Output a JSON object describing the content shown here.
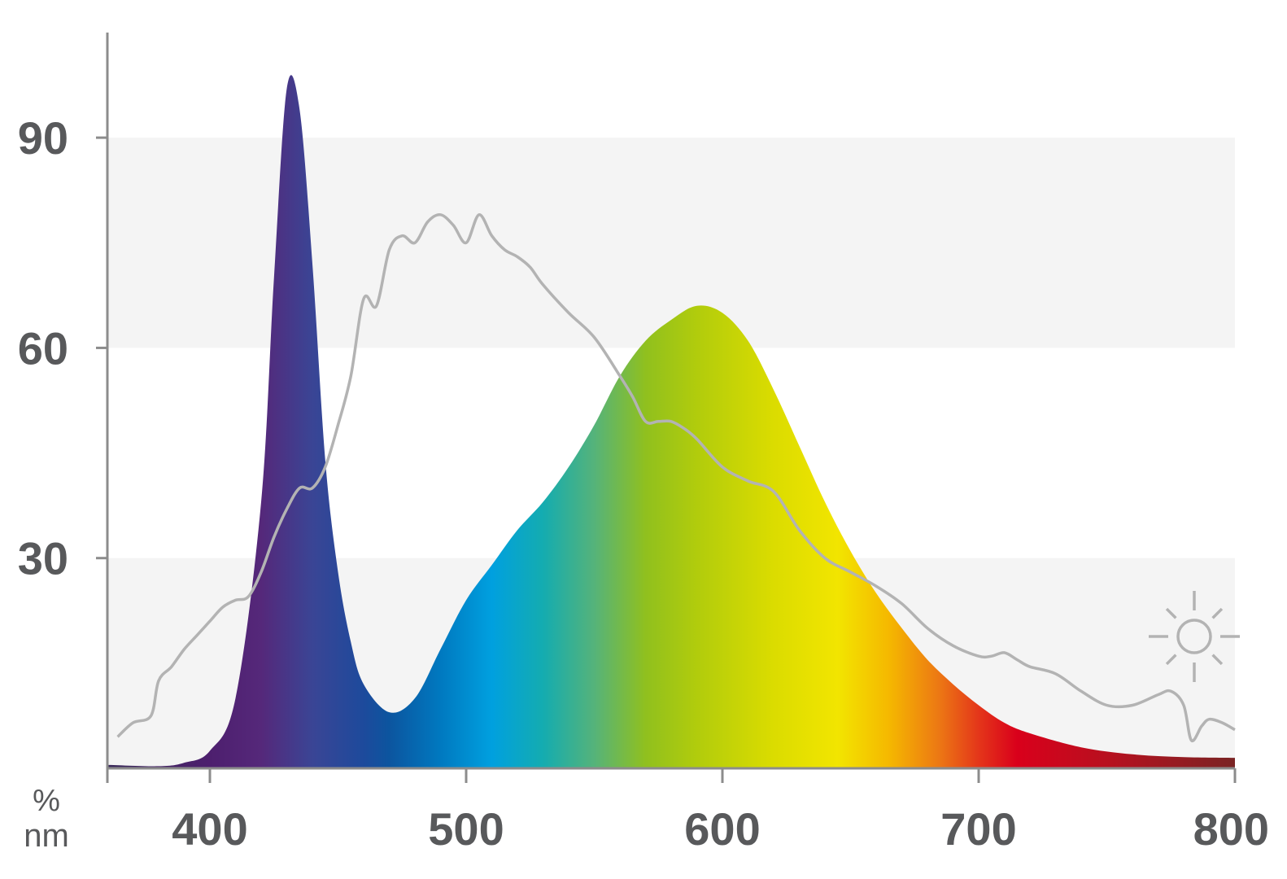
{
  "chart_data": {
    "type": "area",
    "title": "",
    "xlabel": "nm",
    "ylabel": "%",
    "xlim": [
      360,
      800
    ],
    "ylim": [
      0,
      105
    ],
    "x_ticks": [
      400,
      500,
      600,
      700,
      800
    ],
    "y_ticks": [
      30,
      60,
      90
    ],
    "x_tick_labels": [
      "400",
      "500",
      "600",
      "700",
      "800"
    ],
    "y_tick_labels": [
      "30",
      "60",
      "90"
    ],
    "grid": "alternating horizontal bands",
    "colors": {
      "axis": "#8c8c8c",
      "band": "#f4f4f4",
      "sunlight_line": "#b3b3b3",
      "text": "#58595b"
    },
    "icon": "sun-icon",
    "series": [
      {
        "style": "spectral-gradient-area",
        "x": [
          360,
          380,
          390,
          400,
          410,
          420,
          425,
          430,
          435,
          440,
          445,
          450,
          455,
          460,
          470,
          480,
          490,
          500,
          510,
          520,
          530,
          540,
          550,
          560,
          570,
          580,
          590,
          600,
          610,
          620,
          630,
          640,
          650,
          660,
          670,
          680,
          690,
          700,
          710,
          720,
          740,
          760,
          780,
          800
        ],
        "y": [
          0.5,
          0.3,
          0.8,
          2.5,
          10,
          38,
          70,
          97,
          94,
          72,
          44,
          28,
          18,
          12,
          8,
          10,
          17,
          24,
          29,
          34,
          38,
          43,
          49,
          56,
          61,
          64,
          66,
          65,
          61,
          54,
          46,
          38,
          31,
          25,
          20,
          15.5,
          12,
          9,
          6.5,
          5,
          3,
          2,
          1.6,
          1.5
        ]
      },
      {
        "style": "sunlight-reference-line",
        "x": [
          364,
          370,
          377,
          380,
          385,
          390,
          395,
          400,
          405,
          410,
          415,
          420,
          425,
          430,
          435,
          440,
          445,
          450,
          455,
          460,
          465,
          470,
          475,
          480,
          485,
          490,
          495,
          500,
          505,
          510,
          515,
          520,
          525,
          530,
          540,
          550,
          560,
          565,
          570,
          575,
          580,
          585,
          590,
          600,
          610,
          620,
          630,
          640,
          650,
          660,
          670,
          680,
          690,
          700,
          705,
          710,
          715,
          720,
          730,
          740,
          750,
          760,
          770,
          775,
          780,
          783,
          787,
          790,
          795,
          800
        ],
        "y": [
          4.5,
          6.5,
          7.5,
          12.5,
          14.5,
          17,
          19,
          21,
          23,
          24,
          24.5,
          28,
          33,
          37,
          40,
          40,
          43,
          49,
          56,
          67,
          66,
          74,
          76,
          75,
          78,
          79,
          77.5,
          75,
          79,
          76,
          74,
          73,
          71.5,
          69,
          65,
          61.5,
          56,
          53,
          49.5,
          49.5,
          49.5,
          48.5,
          47,
          43,
          41,
          39.5,
          34,
          30,
          28,
          26,
          23.5,
          20,
          17.5,
          16,
          16,
          16.5,
          15.5,
          14.5,
          13.5,
          11,
          9,
          9,
          10.5,
          11,
          9,
          4,
          6,
          7,
          6.5,
          5.5
        ]
      }
    ]
  }
}
